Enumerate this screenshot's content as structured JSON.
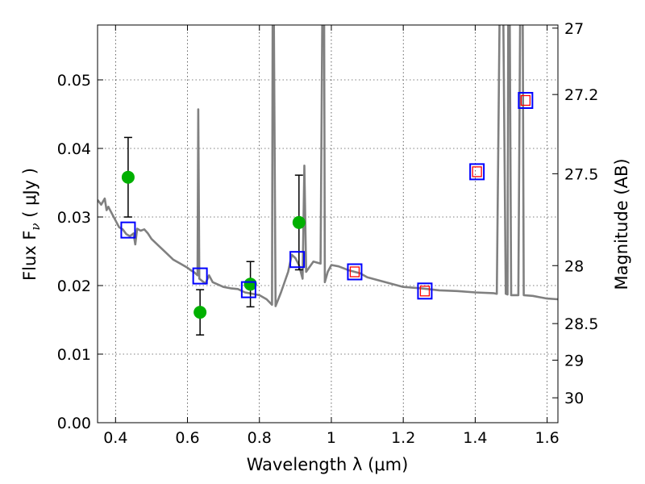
{
  "chart_data": {
    "type": "scatter",
    "xlabel": "Wavelength  λ (μm)",
    "ylabel": "Flux  F",
    "ylabel_sub": "ν",
    "ylabel_unit": "  ( μJy )",
    "y2label": "Magnitude (AB)",
    "xlim": [
      0.35,
      1.63
    ],
    "ylim": [
      0.0,
      0.058
    ],
    "grid": true,
    "grid_style": "dotted",
    "x_ticks": [
      0.4,
      0.6,
      0.8,
      1.0,
      1.2,
      1.4,
      1.6
    ],
    "x_tick_labels": [
      "0.4",
      "0.6",
      "0.8",
      "1",
      "1.2",
      "1.4",
      "1.6"
    ],
    "y_ticks": [
      0.0,
      0.01,
      0.02,
      0.03,
      0.04,
      0.05
    ],
    "y_tick_labels": [
      "0.00",
      "0.01",
      "0.02",
      "0.03",
      "0.04",
      "0.05"
    ],
    "y2_ticks": [
      27,
      27.2,
      27.5,
      28,
      28.5,
      29,
      30
    ],
    "y2_tick_labels": [
      "27",
      "27.2",
      "27.5",
      "28",
      "28.5",
      "29",
      "30"
    ],
    "series": [
      {
        "kind": "spectrum",
        "color": "#808080",
        "points": [
          [
            0.35,
            0.0325
          ],
          [
            0.36,
            0.0318
          ],
          [
            0.37,
            0.0327
          ],
          [
            0.375,
            0.031
          ],
          [
            0.38,
            0.0315
          ],
          [
            0.39,
            0.0305
          ],
          [
            0.4,
            0.0295
          ],
          [
            0.41,
            0.0285
          ],
          [
            0.42,
            0.0282
          ],
          [
            0.43,
            0.0275
          ],
          [
            0.44,
            0.0272
          ],
          [
            0.45,
            0.0276
          ],
          [
            0.455,
            0.026
          ],
          [
            0.46,
            0.0283
          ],
          [
            0.47,
            0.028
          ],
          [
            0.48,
            0.0282
          ],
          [
            0.49,
            0.0276
          ],
          [
            0.5,
            0.0268
          ],
          [
            0.52,
            0.0258
          ],
          [
            0.54,
            0.0248
          ],
          [
            0.56,
            0.0238
          ],
          [
            0.58,
            0.0232
          ],
          [
            0.6,
            0.0226
          ],
          [
            0.61,
            0.0222
          ],
          [
            0.62,
            0.0219
          ],
          [
            0.628,
            0.0215
          ],
          [
            0.63,
            0.0457
          ],
          [
            0.633,
            0.021
          ],
          [
            0.65,
            0.0203
          ],
          [
            0.66,
            0.0215
          ],
          [
            0.67,
            0.0205
          ],
          [
            0.7,
            0.0198
          ],
          [
            0.72,
            0.0196
          ],
          [
            0.74,
            0.0195
          ],
          [
            0.76,
            0.019
          ],
          [
            0.78,
            0.0188
          ],
          [
            0.8,
            0.0186
          ],
          [
            0.82,
            0.018
          ],
          [
            0.835,
            0.0172
          ],
          [
            0.837,
            0.06
          ],
          [
            0.84,
            0.06
          ],
          [
            0.845,
            0.017
          ],
          [
            0.86,
            0.019
          ],
          [
            0.88,
            0.022
          ],
          [
            0.89,
            0.0245
          ],
          [
            0.9,
            0.024
          ],
          [
            0.91,
            0.023
          ],
          [
            0.92,
            0.021
          ],
          [
            0.925,
            0.0375
          ],
          [
            0.93,
            0.022
          ],
          [
            0.95,
            0.0235
          ],
          [
            0.97,
            0.0232
          ],
          [
            0.975,
            0.06
          ],
          [
            0.98,
            0.06
          ],
          [
            0.982,
            0.0205
          ],
          [
            0.99,
            0.022
          ],
          [
            1.0,
            0.023
          ],
          [
            1.02,
            0.0228
          ],
          [
            1.05,
            0.0222
          ],
          [
            1.08,
            0.0218
          ],
          [
            1.1,
            0.0212
          ],
          [
            1.15,
            0.0205
          ],
          [
            1.2,
            0.0198
          ],
          [
            1.25,
            0.0196
          ],
          [
            1.3,
            0.0193
          ],
          [
            1.35,
            0.0192
          ],
          [
            1.4,
            0.019
          ],
          [
            1.45,
            0.0189
          ],
          [
            1.46,
            0.0188
          ],
          [
            1.468,
            0.06
          ],
          [
            1.478,
            0.06
          ],
          [
            1.485,
            0.0188
          ],
          [
            1.49,
            0.0187
          ],
          [
            1.492,
            0.06
          ],
          [
            1.496,
            0.06
          ],
          [
            1.5,
            0.0186
          ],
          [
            1.52,
            0.0186
          ],
          [
            1.525,
            0.06
          ],
          [
            1.532,
            0.06
          ],
          [
            1.535,
            0.0186
          ],
          [
            1.56,
            0.0185
          ],
          [
            1.58,
            0.0183
          ],
          [
            1.6,
            0.0181
          ],
          [
            1.63,
            0.018
          ]
        ]
      },
      {
        "kind": "observed",
        "color": "#00b000",
        "points": [
          {
            "x": 0.435,
            "y": 0.0358,
            "err": 0.0058
          },
          {
            "x": 0.635,
            "y": 0.0161,
            "err": 0.0033
          },
          {
            "x": 0.775,
            "y": 0.0202,
            "err": 0.0033
          },
          {
            "x": 0.91,
            "y": 0.0292,
            "err": 0.0069
          }
        ]
      },
      {
        "kind": "model-photometry",
        "color": "#0000ff",
        "points": [
          {
            "x": 0.435,
            "y": 0.0281
          },
          {
            "x": 0.635,
            "y": 0.0214
          },
          {
            "x": 0.77,
            "y": 0.0194
          },
          {
            "x": 0.905,
            "y": 0.0238
          },
          {
            "x": 1.065,
            "y": 0.022
          },
          {
            "x": 1.26,
            "y": 0.0192
          },
          {
            "x": 1.405,
            "y": 0.0366
          },
          {
            "x": 1.54,
            "y": 0.047
          }
        ]
      },
      {
        "kind": "model-photometry-inner",
        "color": "#ff0000",
        "points": [
          {
            "x": 1.065,
            "y": 0.022
          },
          {
            "x": 1.26,
            "y": 0.0192
          },
          {
            "x": 1.405,
            "y": 0.0366
          },
          {
            "x": 1.54,
            "y": 0.047
          }
        ]
      }
    ]
  }
}
